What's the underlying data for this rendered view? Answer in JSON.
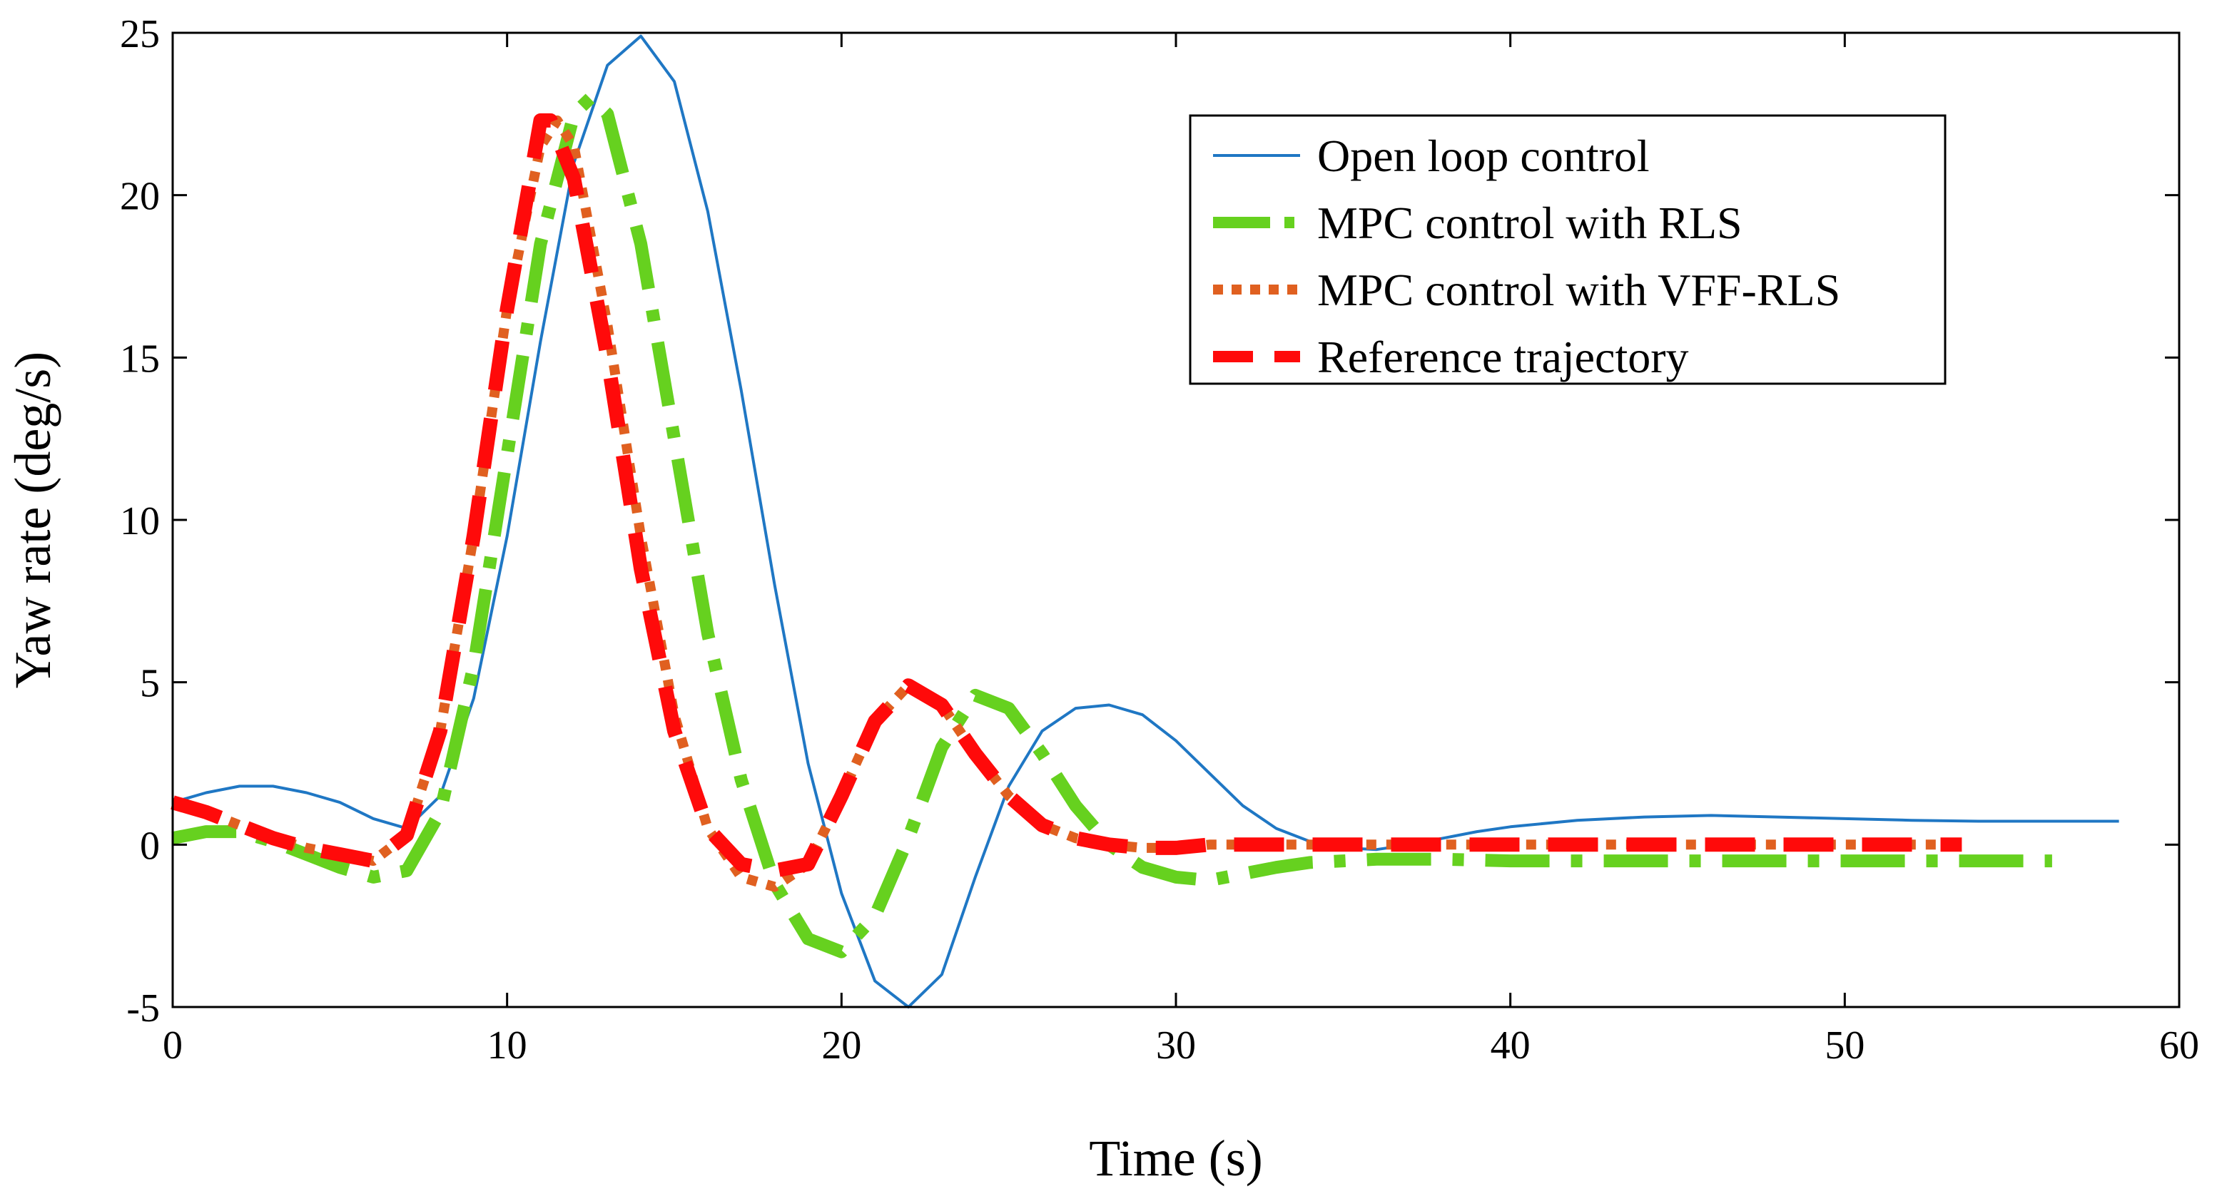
{
  "chart_data": {
    "type": "line",
    "title": "",
    "xlabel": "Time (s)",
    "ylabel": "Yaw rate (deg/s)",
    "xlim": [
      0,
      60
    ],
    "ylim": [
      -5,
      25
    ],
    "xticks": [
      0,
      10,
      20,
      30,
      40,
      50,
      60
    ],
    "yticks": [
      -5,
      0,
      5,
      10,
      15,
      20,
      25
    ],
    "xtick_labels": [
      "0",
      "10",
      "20",
      "30",
      "40",
      "50",
      "60"
    ],
    "ytick_labels": [
      "-5",
      "0",
      "5",
      "10",
      "15",
      "20",
      "25"
    ],
    "grid": false,
    "legend_position": "top-right",
    "series": [
      {
        "name": "Open loop control",
        "color": "#1f77c4",
        "style": "solid",
        "x": [
          0,
          1,
          2,
          3,
          4,
          5,
          6,
          7,
          8,
          9,
          10,
          11,
          12,
          13,
          14,
          15,
          16,
          17,
          18,
          19,
          20,
          21,
          22,
          23,
          24,
          25,
          26,
          27,
          28,
          29,
          30,
          31,
          32,
          33,
          34,
          35,
          36,
          37,
          38,
          39,
          40,
          42,
          44,
          46,
          48,
          50,
          52,
          54,
          56,
          58.2
        ],
        "y": [
          1.3,
          1.6,
          1.8,
          1.8,
          1.6,
          1.3,
          0.8,
          0.5,
          1.5,
          4.5,
          9.5,
          15.5,
          21,
          24,
          24.9,
          23.5,
          19.5,
          14,
          8,
          2.5,
          -1.5,
          -4.2,
          -5,
          -4,
          -1,
          1.8,
          3.5,
          4.2,
          4.3,
          4.0,
          3.2,
          2.2,
          1.2,
          0.5,
          0.1,
          -0.1,
          -0.15,
          0,
          0.2,
          0.4,
          0.55,
          0.75,
          0.85,
          0.9,
          0.85,
          0.8,
          0.75,
          0.72,
          0.72,
          0.72
        ]
      },
      {
        "name": "MPC control with RLS",
        "color": "#66d11f",
        "style": "dashdot",
        "x": [
          0,
          1,
          2,
          3,
          4,
          5,
          6,
          7,
          8,
          9,
          10,
          11,
          12,
          12.5,
          13,
          14,
          15,
          16,
          17,
          18,
          19,
          20,
          21,
          22,
          23,
          24,
          25,
          26,
          27,
          28,
          29,
          30,
          31,
          32,
          33,
          34,
          35,
          36,
          38,
          40,
          42,
          44,
          46,
          48,
          50,
          52,
          54,
          56.2
        ],
        "y": [
          0.2,
          0.4,
          0.4,
          0.1,
          -0.3,
          -0.7,
          -1.0,
          -0.8,
          1.0,
          5.5,
          12,
          18.5,
          22.5,
          23,
          22.5,
          18.5,
          12.5,
          6.5,
          2,
          -1.2,
          -2.9,
          -3.3,
          -2.2,
          0.2,
          3.0,
          4.6,
          4.2,
          2.8,
          1.2,
          0.0,
          -0.7,
          -1.0,
          -1.1,
          -0.9,
          -0.7,
          -0.55,
          -0.5,
          -0.45,
          -0.45,
          -0.5,
          -0.5,
          -0.5,
          -0.5,
          -0.5,
          -0.5,
          -0.5,
          -0.5,
          -0.5
        ]
      },
      {
        "name": "MPC control with VFF-RLS",
        "color": "#e06020",
        "style": "dotted",
        "x": [
          0,
          1,
          2,
          3,
          4,
          5,
          6,
          7,
          8,
          9,
          10,
          11,
          11.5,
          12,
          13,
          14,
          15,
          16,
          17,
          18,
          19,
          20,
          21,
          22,
          23,
          24,
          25,
          26,
          27,
          28,
          29,
          30,
          31,
          32,
          34,
          36,
          40,
          44,
          48,
          52,
          53.5
        ],
        "y": [
          1.3,
          1.0,
          0.6,
          0.2,
          -0.1,
          -0.3,
          -0.5,
          0.3,
          3.5,
          9.5,
          16.5,
          21.5,
          22.3,
          21.5,
          16,
          9.5,
          4.0,
          0.5,
          -1.0,
          -1.3,
          -0.6,
          1.5,
          3.8,
          4.9,
          4.3,
          2.8,
          1.5,
          0.6,
          0.2,
          0.0,
          -0.1,
          -0.1,
          0.0,
          0.0,
          0.0,
          0.0,
          0.0,
          0.0,
          0.0,
          0.0,
          0.0
        ]
      },
      {
        "name": "Reference trajectory",
        "color": "#ff0a0a",
        "style": "dashed",
        "x": [
          0,
          1,
          2,
          3,
          4,
          5,
          6,
          7,
          8,
          9,
          10,
          11,
          11.3,
          12,
          13,
          14,
          15,
          16,
          17,
          18,
          19,
          20,
          21,
          22,
          23,
          24,
          25,
          26,
          27,
          28,
          29,
          30,
          31,
          32,
          34,
          36,
          40,
          44,
          48,
          52,
          53.5
        ],
        "y": [
          1.3,
          1.0,
          0.6,
          0.2,
          -0.1,
          -0.3,
          -0.5,
          0.3,
          3.5,
          9.5,
          16.5,
          22.3,
          22.3,
          20.5,
          15,
          8.5,
          3.5,
          0.5,
          -0.6,
          -0.8,
          -0.6,
          1.5,
          3.8,
          4.9,
          4.3,
          2.8,
          1.5,
          0.6,
          0.2,
          0.0,
          -0.1,
          -0.1,
          0.0,
          0.0,
          0.0,
          0.0,
          0.0,
          0.0,
          0.0,
          0.0,
          0.0
        ]
      }
    ]
  }
}
